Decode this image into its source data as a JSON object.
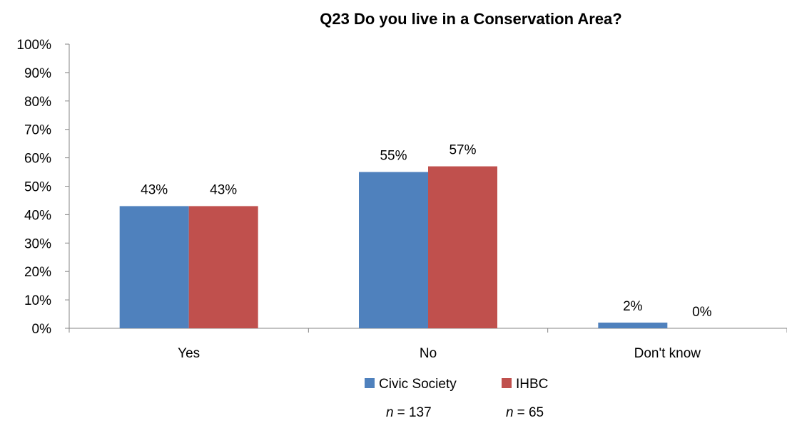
{
  "chart_data": {
    "type": "bar",
    "title": "Q23 Do you live in a Conservation Area?",
    "categories": [
      "Yes",
      "No",
      "Don't know"
    ],
    "series": [
      {
        "name": "Civic Society",
        "values": [
          43,
          55,
          2
        ],
        "labels": [
          "43%",
          "55%",
          "2%"
        ],
        "color": "#4F81BD"
      },
      {
        "name": "IHBC",
        "values": [
          43,
          57,
          0
        ],
        "labels": [
          "43%",
          "57%",
          "0%"
        ],
        "color": "#C0504D"
      }
    ],
    "ylim": [
      0,
      100
    ],
    "yticks": [
      "0%",
      "10%",
      "20%",
      "30%",
      "40%",
      "50%",
      "60%",
      "70%",
      "80%",
      "90%",
      "100%"
    ],
    "legend_position": "bottom",
    "grid": false,
    "sample_sizes": [
      {
        "label": "n",
        "value": "= 137"
      },
      {
        "label": "n",
        "value": "= 65"
      }
    ]
  }
}
